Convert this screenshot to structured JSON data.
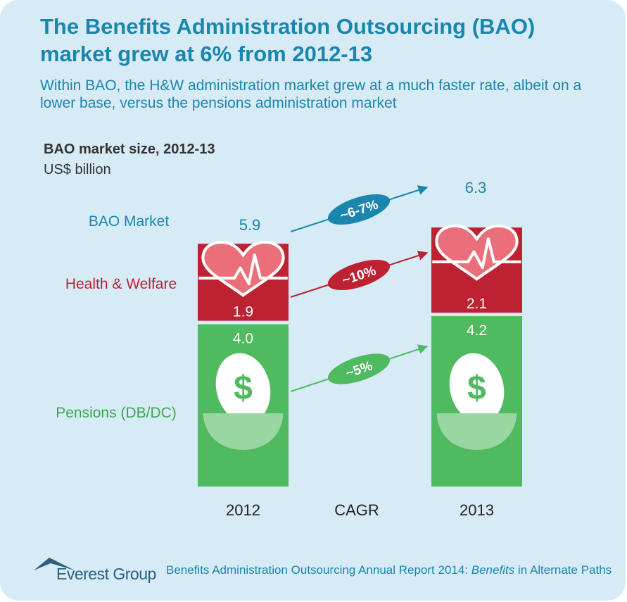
{
  "title": "The Benefits Administration Outsourcing (BAO) market grew at 6% from 2012-13",
  "subtitle": "Within BAO, the H&W administration market grew at a much faster rate, albeit on a lower base, versus the pensions administration market",
  "chart_data": {
    "type": "bar",
    "stacked": true,
    "title": "BAO market size, 2012-13",
    "unit": "US$ billion",
    "categories": [
      "2012",
      "2013"
    ],
    "cagr_label": "CAGR",
    "series": [
      {
        "name": "Pensions (DB/DC)",
        "values": [
          4.0,
          4.2
        ],
        "value_labels": [
          "4.0",
          "4.2"
        ],
        "color": "#4fba5f",
        "cagr": "~5%",
        "icon": "dollar-egg-icon"
      },
      {
        "name": "Health & Welfare",
        "values": [
          1.9,
          2.1
        ],
        "value_labels": [
          "1.9",
          "2.1"
        ],
        "color": "#be2131",
        "cagr": "~10%",
        "icon": "heartbeat-icon"
      }
    ],
    "total": {
      "name": "BAO Market",
      "values": [
        5.9,
        6.3
      ],
      "value_labels": [
        "5.9",
        "6.3"
      ],
      "color": "#1a86ad",
      "cagr": "~6-7%"
    }
  },
  "colors": {
    "background": "#d7ebf7",
    "accent": "#1a86ad",
    "health": "#be2131",
    "pensions": "#4fba5f"
  },
  "footer": {
    "logo_text": "Everest Group",
    "report_before": "Benefits Administration Outsourcing Annual Report 2014: ",
    "report_italic": "Benefits",
    "report_after": " in Alternate Paths"
  }
}
